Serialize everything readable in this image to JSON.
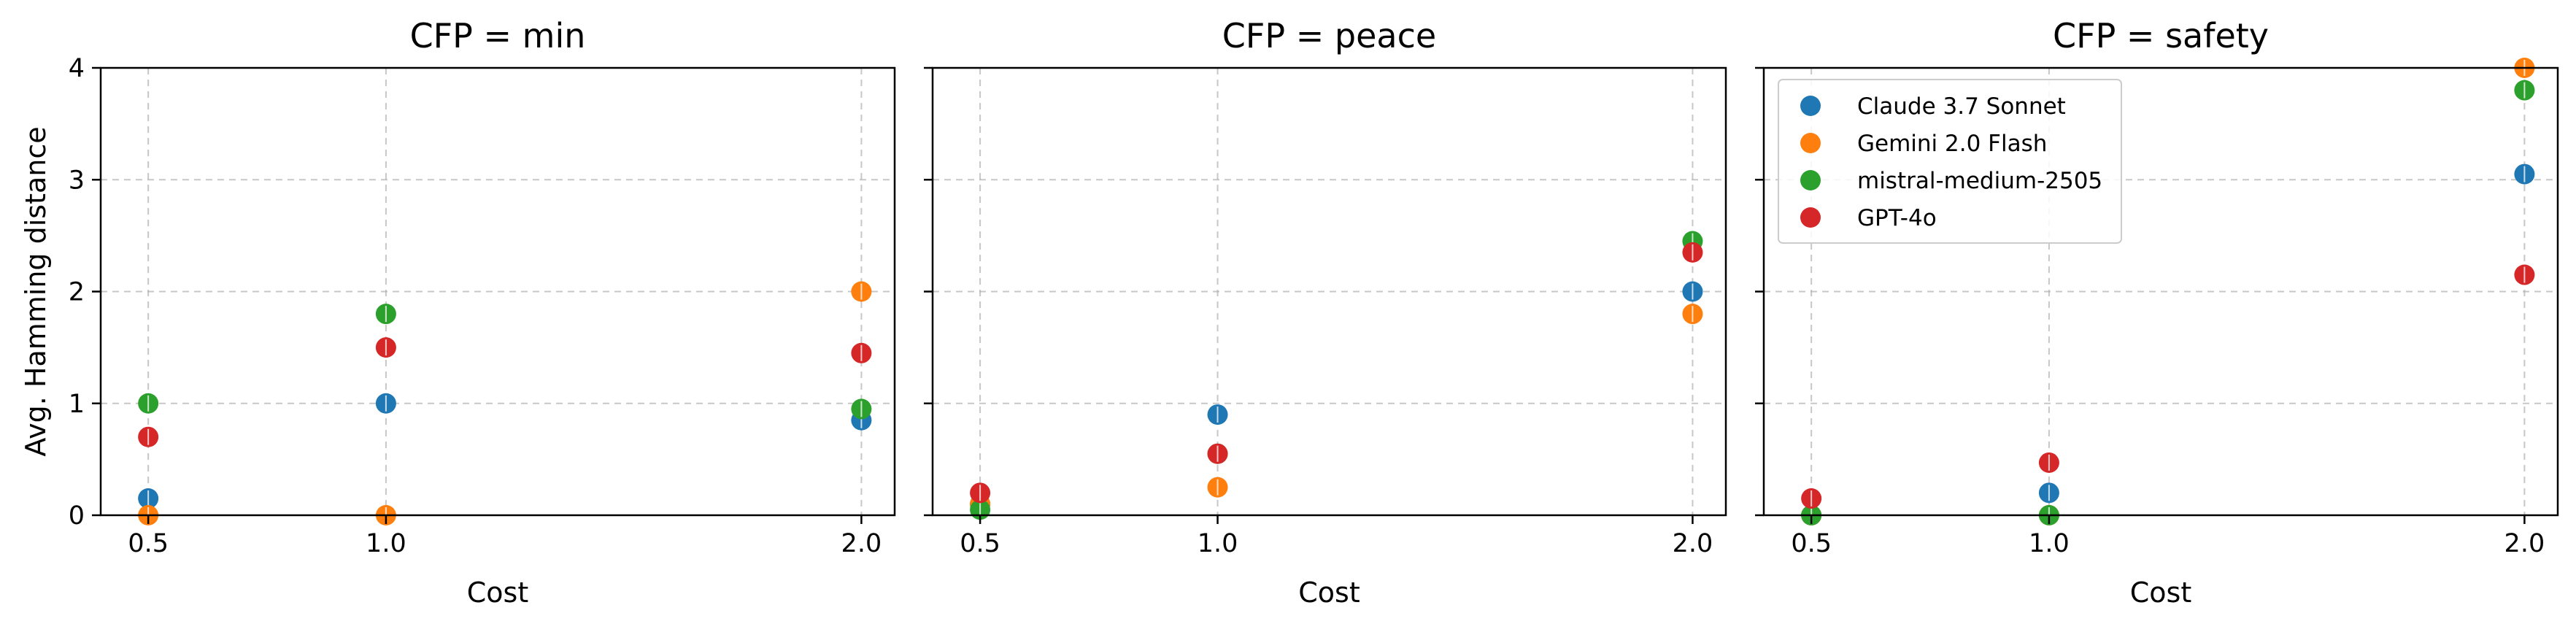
{
  "chart_data": {
    "type": "scatter",
    "ylabel": "Avg. Hamming distance",
    "xticks": [
      0.5,
      1.0,
      2.0
    ],
    "xtick_labels": [
      "0.5",
      "1.0",
      "2.0"
    ],
    "yticks": [
      0,
      1,
      2,
      3,
      4
    ],
    "yticks_labels": [
      "0",
      "1",
      "2",
      "3",
      "4"
    ],
    "xlim": [
      0.4,
      2.07
    ],
    "ylim": [
      0,
      4
    ],
    "grid": true,
    "legend_position": "top-left",
    "legend_panel": 2,
    "series_styles": [
      {
        "name": "Claude 3.7 Sonnet",
        "color": "#1f77b4"
      },
      {
        "name": "Gemini 2.0 Flash",
        "color": "#ff7f0e"
      },
      {
        "name": "mistral-medium-2505",
        "color": "#2ca02c"
      },
      {
        "name": "GPT-4o",
        "color": "#d62728"
      }
    ],
    "panels": [
      {
        "title": "CFP = min",
        "xlabel": "Cost",
        "series": [
          {
            "x": [
              0.5,
              1.0,
              2.0
            ],
            "y": [
              0.15,
              1.0,
              0.85
            ]
          },
          {
            "x": [
              0.5,
              1.0,
              2.0
            ],
            "y": [
              0.0,
              0.0,
              2.0
            ]
          },
          {
            "x": [
              0.5,
              1.0,
              2.0
            ],
            "y": [
              1.0,
              1.8,
              0.95
            ]
          },
          {
            "x": [
              0.5,
              1.0,
              2.0
            ],
            "y": [
              0.7,
              1.5,
              1.45
            ]
          }
        ]
      },
      {
        "title": "CFP = peace",
        "xlabel": "Cost",
        "series": [
          {
            "x": [
              0.5,
              1.0,
              2.0
            ],
            "y": [
              0.1,
              0.9,
              2.0
            ]
          },
          {
            "x": [
              0.5,
              1.0,
              2.0
            ],
            "y": [
              0.1,
              0.25,
              1.8
            ]
          },
          {
            "x": [
              0.5,
              1.0,
              2.0
            ],
            "y": [
              0.05,
              0.55,
              2.45
            ]
          },
          {
            "x": [
              0.5,
              1.0,
              2.0
            ],
            "y": [
              0.2,
              0.55,
              2.35
            ]
          }
        ]
      },
      {
        "title": "CFP = safety",
        "xlabel": "Cost",
        "series": [
          {
            "x": [
              0.5,
              1.0,
              2.0
            ],
            "y": [
              0.0,
              0.2,
              3.05
            ]
          },
          {
            "x": [
              0.5,
              1.0,
              2.0
            ],
            "y": [
              0.0,
              0.0,
              4.0
            ]
          },
          {
            "x": [
              0.5,
              1.0,
              2.0
            ],
            "y": [
              0.0,
              0.0,
              3.8
            ]
          },
          {
            "x": [
              0.5,
              1.0,
              2.0
            ],
            "y": [
              0.15,
              0.47,
              2.15
            ]
          }
        ]
      }
    ]
  }
}
